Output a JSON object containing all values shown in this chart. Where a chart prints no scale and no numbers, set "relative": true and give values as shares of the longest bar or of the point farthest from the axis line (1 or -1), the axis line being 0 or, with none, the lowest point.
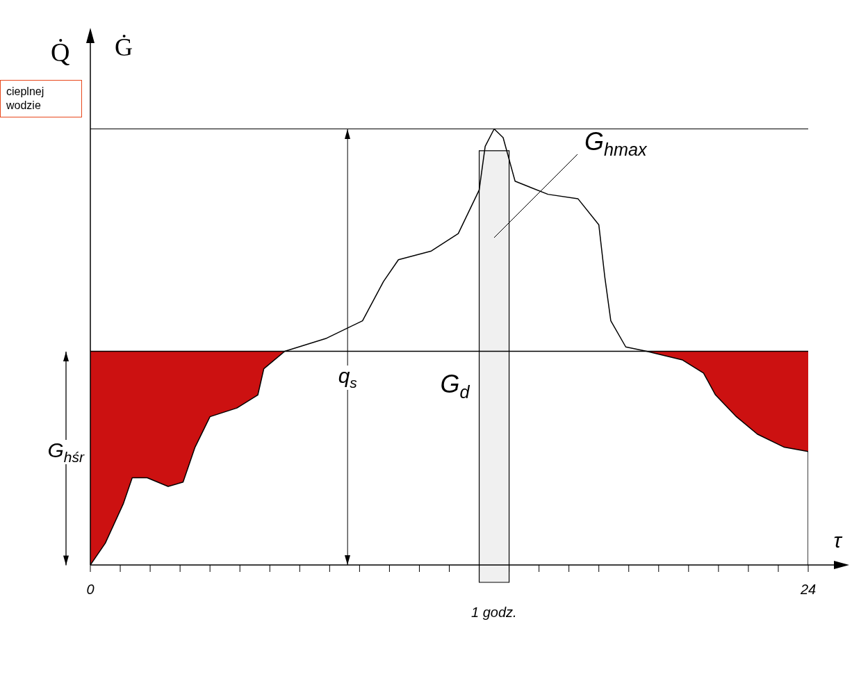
{
  "chart_data": {
    "type": "line",
    "relative": true,
    "ylabel": "Q̇",
    "xlabel": "τ",
    "xlim": [
      0,
      24
    ],
    "xticks": [
      0,
      {
        "value": 1,
        "label": null
      },
      {
        "value": 2,
        "label": null
      },
      {
        "value": 3,
        "label": null
      },
      {
        "value": 4,
        "label": null
      },
      {
        "value": 5,
        "label": null
      },
      {
        "value": 6,
        "label": null
      },
      {
        "value": 7,
        "label": null
      },
      {
        "value": 8,
        "label": null
      },
      {
        "value": 9,
        "label": null
      },
      {
        "value": 10,
        "label": null
      },
      {
        "value": 11,
        "label": null
      },
      {
        "value": 12,
        "label": null
      },
      {
        "value": 13,
        "label": null
      },
      {
        "value": 14,
        "label": null
      },
      {
        "value": 15,
        "label": null
      },
      {
        "value": 16,
        "label": null
      },
      {
        "value": 17,
        "label": null
      },
      {
        "value": 18,
        "label": null
      },
      {
        "value": 19,
        "label": null
      },
      {
        "value": 20,
        "label": null
      },
      {
        "value": 21,
        "label": null
      },
      {
        "value": 22,
        "label": null
      },
      {
        "value": 23,
        "label": null
      },
      24
    ],
    "grid": false,
    "legend": false,
    "marker": "none",
    "series": [
      {
        "color": "#000000",
        "x": [
          0,
          0.5,
          1.1,
          1.4,
          1.9,
          2.6,
          3.1,
          3.5,
          4.0,
          4.9,
          5.6,
          5.8,
          6.5,
          7.9,
          9.1,
          9.8,
          10.3,
          11.4,
          12.3,
          13.0,
          13.2,
          13.5,
          13.8,
          14.2,
          15.3,
          16.3,
          17.0,
          17.2,
          17.4,
          17.9,
          18.6,
          19.8,
          20.5,
          20.9,
          21.6,
          22.3,
          23.2,
          24,
          24
        ],
        "values": [
          0,
          0.05,
          0.14,
          0.2,
          0.2,
          0.18,
          0.19,
          0.27,
          0.34,
          0.36,
          0.39,
          0.45,
          0.49,
          0.52,
          0.56,
          0.65,
          0.7,
          0.72,
          0.76,
          0.86,
          0.96,
          1,
          0.98,
          0.88,
          0.85,
          0.84,
          0.78,
          0.66,
          0.56,
          0.5,
          0.49,
          0.47,
          0.44,
          0.39,
          0.34,
          0.3,
          0.27,
          0.26,
          0
        ]
      },
      {
        "type": "line",
        "color": "#000000",
        "x": [
          0,
          0.5,
          1.1,
          1.4,
          1.9,
          2.6,
          3.1,
          3.5,
          4.0,
          4.9,
          5.6,
          5.8,
          6.5,
          7.9,
          9.1,
          9.8,
          10.3,
          11.4,
          12.3,
          13.0,
          13.2,
          13.5,
          13.8,
          14.2,
          15.3,
          16.3,
          17.0,
          17.2,
          17.4,
          17.9,
          18.6,
          19.8,
          20.5,
          20.9,
          21.6,
          22.3,
          23.2,
          24
        ],
        "values": [
          0.49,
          0.49,
          0.49,
          0.49,
          0.49,
          0.49,
          0.49,
          0.49,
          0.49,
          0.49,
          0.49,
          0.49,
          0.49,
          0.49,
          0.49,
          0.49,
          0.49,
          0.49,
          0.49,
          0.49,
          0.49,
          0.49,
          0.49,
          0.49,
          0.49,
          0.49,
          0.49,
          0.49,
          0.49,
          0.49,
          0.49,
          0.49,
          0.49,
          0.49,
          0.49,
          0.49,
          0.49,
          0.49
        ],
        "lower": [
          0,
          0.05,
          0.14,
          0.2,
          0.2,
          0.18,
          0.19,
          0.27,
          0.34,
          0.36,
          0.39,
          0.45,
          0.49,
          0.49,
          0.49,
          0.49,
          0.49,
          0.49,
          0.49,
          0.49,
          0.49,
          0.49,
          0.49,
          0.49,
          0.49,
          0.49,
          0.49,
          0.49,
          0.49,
          0.49,
          0.49,
          0.47,
          0.44,
          0.39,
          0.34,
          0.3,
          0.27,
          0.26
        ],
        "upper": [
          0.49,
          0.49,
          0.49,
          0.49,
          0.49,
          0.49,
          0.49,
          0.49,
          0.49,
          0.49,
          0.49,
          0.49,
          0.49,
          0.49,
          0.49,
          0.49,
          0.49,
          0.49,
          0.49,
          0.49,
          0.49,
          0.49,
          0.49,
          0.49,
          0.49,
          0.49,
          0.49,
          0.49,
          0.49,
          0.49,
          0.49,
          0.49,
          0.49,
          0.49,
          0.49,
          0.49,
          0.49,
          0.49
        ]
      }
    ],
    "ref_lines": [
      {
        "axis": "y",
        "value": 1
      },
      {
        "axis": "x",
        "value": 8.6,
        "label": "q$_{s}$"
      }
    ],
    "bands": [
      {
        "axis": "x",
        "from": 13,
        "to": 14,
        "label": "1 godz."
      }
    ],
    "annotations": [
      "G$_{d}$",
      "G$_{hmax}$",
      "G$_{hśr}$",
      "Ġ",
      "cieplnej wodzie"
    ]
  }
}
